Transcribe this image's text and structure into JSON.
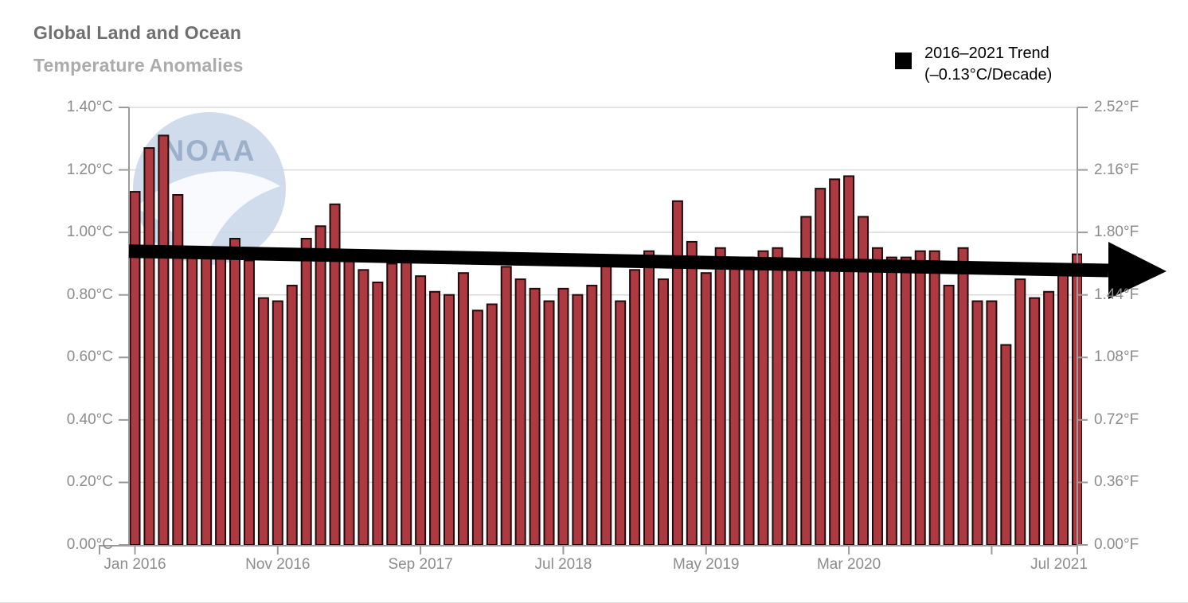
{
  "header": {
    "title": "Global Land and Ocean",
    "subtitle": "Temperature Anomalies"
  },
  "legend": {
    "line1": "2016–2021 Trend",
    "line2": "(–0.13°C/Decade)",
    "marker_color": "#000000"
  },
  "watermark": {
    "text": "NOAA"
  },
  "colors": {
    "bar_fill": "#AC3A40",
    "bar_border": "#200B0D",
    "gridline": "#D9D9D9",
    "axis": "#9C9C9C",
    "trend": "#000000",
    "label_gray": "#8C8C8C",
    "logo_disc": "#CBD9EA",
    "logo_text": "#8CA3C2"
  },
  "chart_data": {
    "type": "bar",
    "title": "Global Land and Ocean Temperature Anomalies",
    "xlabel": "",
    "ylabel_left": "°C",
    "ylabel_right": "°F",
    "ylim_c": [
      0,
      1.4
    ],
    "grid": true,
    "legend_position": "top-right",
    "y_ticks": [
      {
        "c": "0.00°C",
        "f": "0.00°F",
        "value": 0.0
      },
      {
        "c": "0.20°C",
        "f": "0.36°F",
        "value": 0.2
      },
      {
        "c": "0.40°C",
        "f": "0.72°F",
        "value": 0.4
      },
      {
        "c": "0.60°C",
        "f": "1.08°F",
        "value": 0.6
      },
      {
        "c": "0.80°C",
        "f": "1.44°F",
        "value": 0.8
      },
      {
        "c": "1.00°C",
        "f": "1.80°F",
        "value": 1.0
      },
      {
        "c": "1.20°C",
        "f": "2.16°F",
        "value": 1.2
      },
      {
        "c": "1.40°C",
        "f": "2.52°F",
        "value": 1.4
      }
    ],
    "x_ticks": [
      {
        "label": "Jan 2016",
        "month": 0
      },
      {
        "label": "Nov 2016",
        "month": 10
      },
      {
        "label": "Sep 2017",
        "month": 20
      },
      {
        "label": "Jul 2018",
        "month": 30
      },
      {
        "label": "May 2019",
        "month": 40
      },
      {
        "label": "Mar 2020",
        "month": 50
      },
      {
        "label": "",
        "month": 60
      },
      {
        "label": "Jul 2021",
        "month": 66
      }
    ],
    "categories": [
      "Jan 2016",
      "Feb 2016",
      "Mar 2016",
      "Apr 2016",
      "May 2016",
      "Jun 2016",
      "Jul 2016",
      "Aug 2016",
      "Sep 2016",
      "Oct 2016",
      "Nov 2016",
      "Dec 2016",
      "Jan 2017",
      "Feb 2017",
      "Mar 2017",
      "Apr 2017",
      "May 2017",
      "Jun 2017",
      "Jul 2017",
      "Aug 2017",
      "Sep 2017",
      "Oct 2017",
      "Nov 2017",
      "Dec 2017",
      "Jan 2018",
      "Feb 2018",
      "Mar 2018",
      "Apr 2018",
      "May 2018",
      "Jun 2018",
      "Jul 2018",
      "Aug 2018",
      "Sep 2018",
      "Oct 2018",
      "Nov 2018",
      "Dec 2018",
      "Jan 2019",
      "Feb 2019",
      "Mar 2019",
      "Apr 2019",
      "May 2019",
      "Jun 2019",
      "Jul 2019",
      "Aug 2019",
      "Sep 2019",
      "Oct 2019",
      "Nov 2019",
      "Dec 2019",
      "Jan 2020",
      "Feb 2020",
      "Mar 2020",
      "Apr 2020",
      "May 2020",
      "Jun 2020",
      "Jul 2020",
      "Aug 2020",
      "Sep 2020",
      "Oct 2020",
      "Nov 2020",
      "Dec 2020",
      "Jan 2021",
      "Feb 2021",
      "Mar 2021",
      "Apr 2021",
      "May 2021",
      "Jun 2021",
      "Jul 2021"
    ],
    "values": [
      1.13,
      1.27,
      1.31,
      1.12,
      0.92,
      0.92,
      0.92,
      0.98,
      0.91,
      0.79,
      0.78,
      0.83,
      0.98,
      1.02,
      1.09,
      0.92,
      0.88,
      0.84,
      0.9,
      0.91,
      0.86,
      0.81,
      0.8,
      0.87,
      0.75,
      0.77,
      0.89,
      0.85,
      0.82,
      0.78,
      0.82,
      0.8,
      0.83,
      0.9,
      0.78,
      0.88,
      0.94,
      0.85,
      1.1,
      0.97,
      0.87,
      0.95,
      0.91,
      0.92,
      0.94,
      0.95,
      0.91,
      1.05,
      1.14,
      1.17,
      1.18,
      1.05,
      0.95,
      0.92,
      0.92,
      0.94,
      0.94,
      0.83,
      0.95,
      0.78,
      0.78,
      0.64,
      0.85,
      0.79,
      0.81,
      0.87,
      0.93
    ],
    "trend": {
      "name": "2016–2021 Trend (–0.13°C/Decade)",
      "start_c": 0.94,
      "end_c": 0.88
    }
  }
}
